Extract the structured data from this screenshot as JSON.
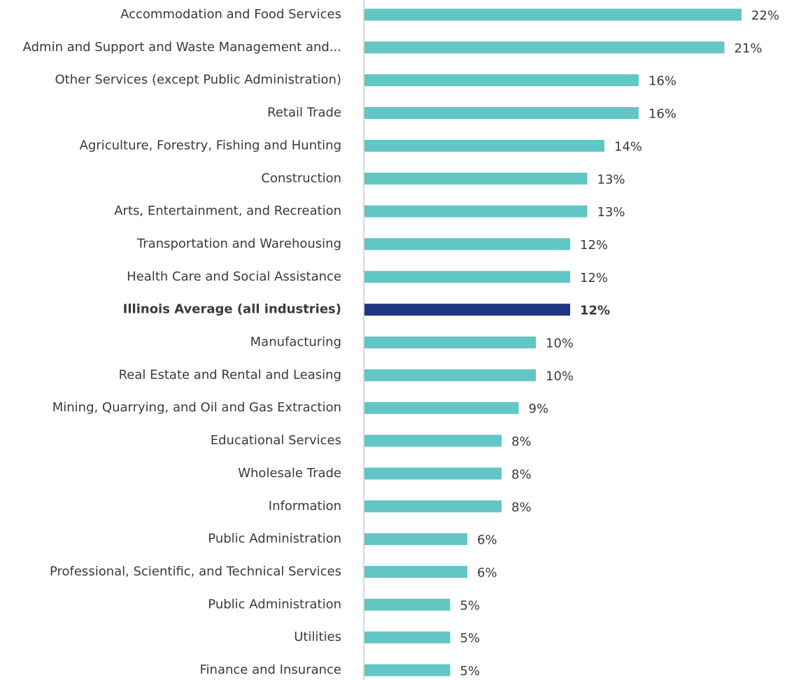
{
  "chart_data": {
    "type": "barh",
    "categories": [
      "Accommodation and Food Services",
      "Admin and Support and Waste Management and...",
      "Other Services (except Public Administration)",
      "Retail Trade",
      "Agriculture, Forestry, Fishing and Hunting",
      "Construction",
      "Arts, Entertainment, and Recreation",
      "Transportation and Warehousing",
      "Health Care and Social Assistance",
      "Illinois Average (all industries)",
      "Manufacturing",
      "Real Estate and Rental and Leasing",
      "Mining, Quarrying, and Oil and Gas Extraction",
      "Educational Services",
      "Wholesale Trade",
      "Information",
      "Public Administration",
      "Professional, Scientific, and Technical Services",
      "Public Administration",
      "Utilities",
      "Finance and Insurance"
    ],
    "values": [
      22,
      21,
      16,
      16,
      14,
      13,
      13,
      12,
      12,
      12,
      10,
      10,
      9,
      8,
      8,
      8,
      6,
      6,
      5,
      5,
      5
    ],
    "value_labels": [
      "22%",
      "21%",
      "16%",
      "16%",
      "14%",
      "13%",
      "13%",
      "12%",
      "12%",
      "12%",
      "10%",
      "10%",
      "9%",
      "8%",
      "8%",
      "8%",
      "6%",
      "6%",
      "5%",
      "5%",
      "5%"
    ],
    "color": "#62c6c4",
    "colors": [
      "#62c6c4",
      "#62c6c4",
      "#62c6c4",
      "#62c6c4",
      "#62c6c4",
      "#62c6c4",
      "#62c6c4",
      "#62c6c4",
      "#62c6c4",
      "#1f3580",
      "#62c6c4",
      "#62c6c4",
      "#62c6c4",
      "#62c6c4",
      "#62c6c4",
      "#62c6c4",
      "#62c6c4",
      "#62c6c4",
      "#62c6c4",
      "#62c6c4",
      "#62c6c4"
    ]
  }
}
